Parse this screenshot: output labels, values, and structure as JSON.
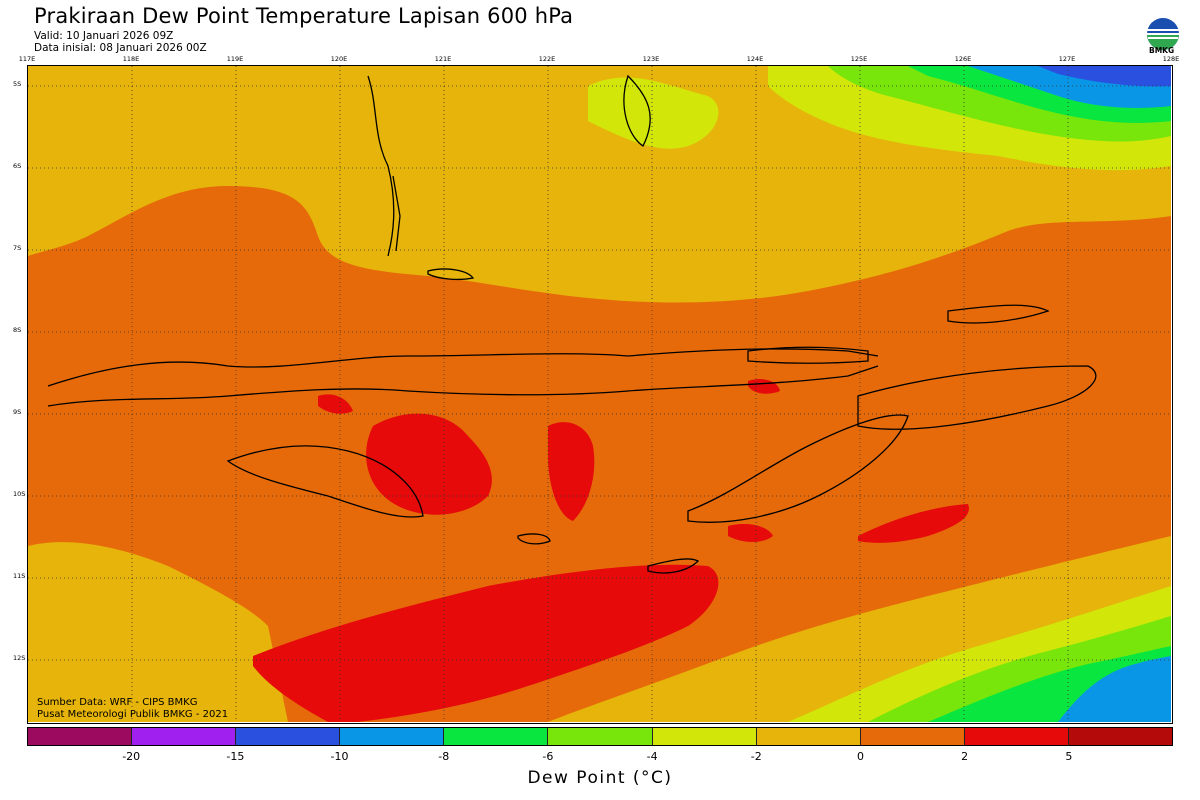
{
  "header": {
    "title": "Prakiraan Dew Point Temperature Lapisan 600 hPa",
    "valid": "Valid: 10 Januari 2026 09Z",
    "init": "Data inisial: 08 Januari 2026 00Z"
  },
  "logo": {
    "text": "BMKG",
    "icon": "bmkg-logo-icon"
  },
  "lon_labels": [
    "117E",
    "118E",
    "119E",
    "120E",
    "121E",
    "122E",
    "123E",
    "124E",
    "125E",
    "126E",
    "127E",
    "128E"
  ],
  "lat_labels": [
    "5S",
    "6S",
    "7S",
    "8S",
    "9S",
    "10S",
    "11S",
    "12S"
  ],
  "credits": {
    "source": "Sumber Data: WRF - CIPS BMKG",
    "org": "Pusat Meteorologi Publik BMKG - 2021"
  },
  "colorbar": {
    "colors": [
      "#9b0a5e",
      "#a020f0",
      "#2a50e0",
      "#0a96e6",
      "#0ae640",
      "#78e60a",
      "#d2e60a",
      "#e6b40a",
      "#e66a0a",
      "#e60a0a",
      "#b40a0a"
    ],
    "labels": [
      "-20",
      "-15",
      "-10",
      "-8",
      "-6",
      "-4",
      "-2",
      "0",
      "2",
      "5"
    ],
    "title": "Dew Point (°C)"
  },
  "palette": {
    "dark_orange": "#e66a0a",
    "amber": "#e6b40a",
    "yellow": "#d2e60a",
    "lime": "#78e60a",
    "green": "#0ae640",
    "sky": "#0a96e6",
    "blue": "#2a50e0",
    "red": "#e60a0a",
    "grid": "#333333",
    "coast": "#000000"
  }
}
